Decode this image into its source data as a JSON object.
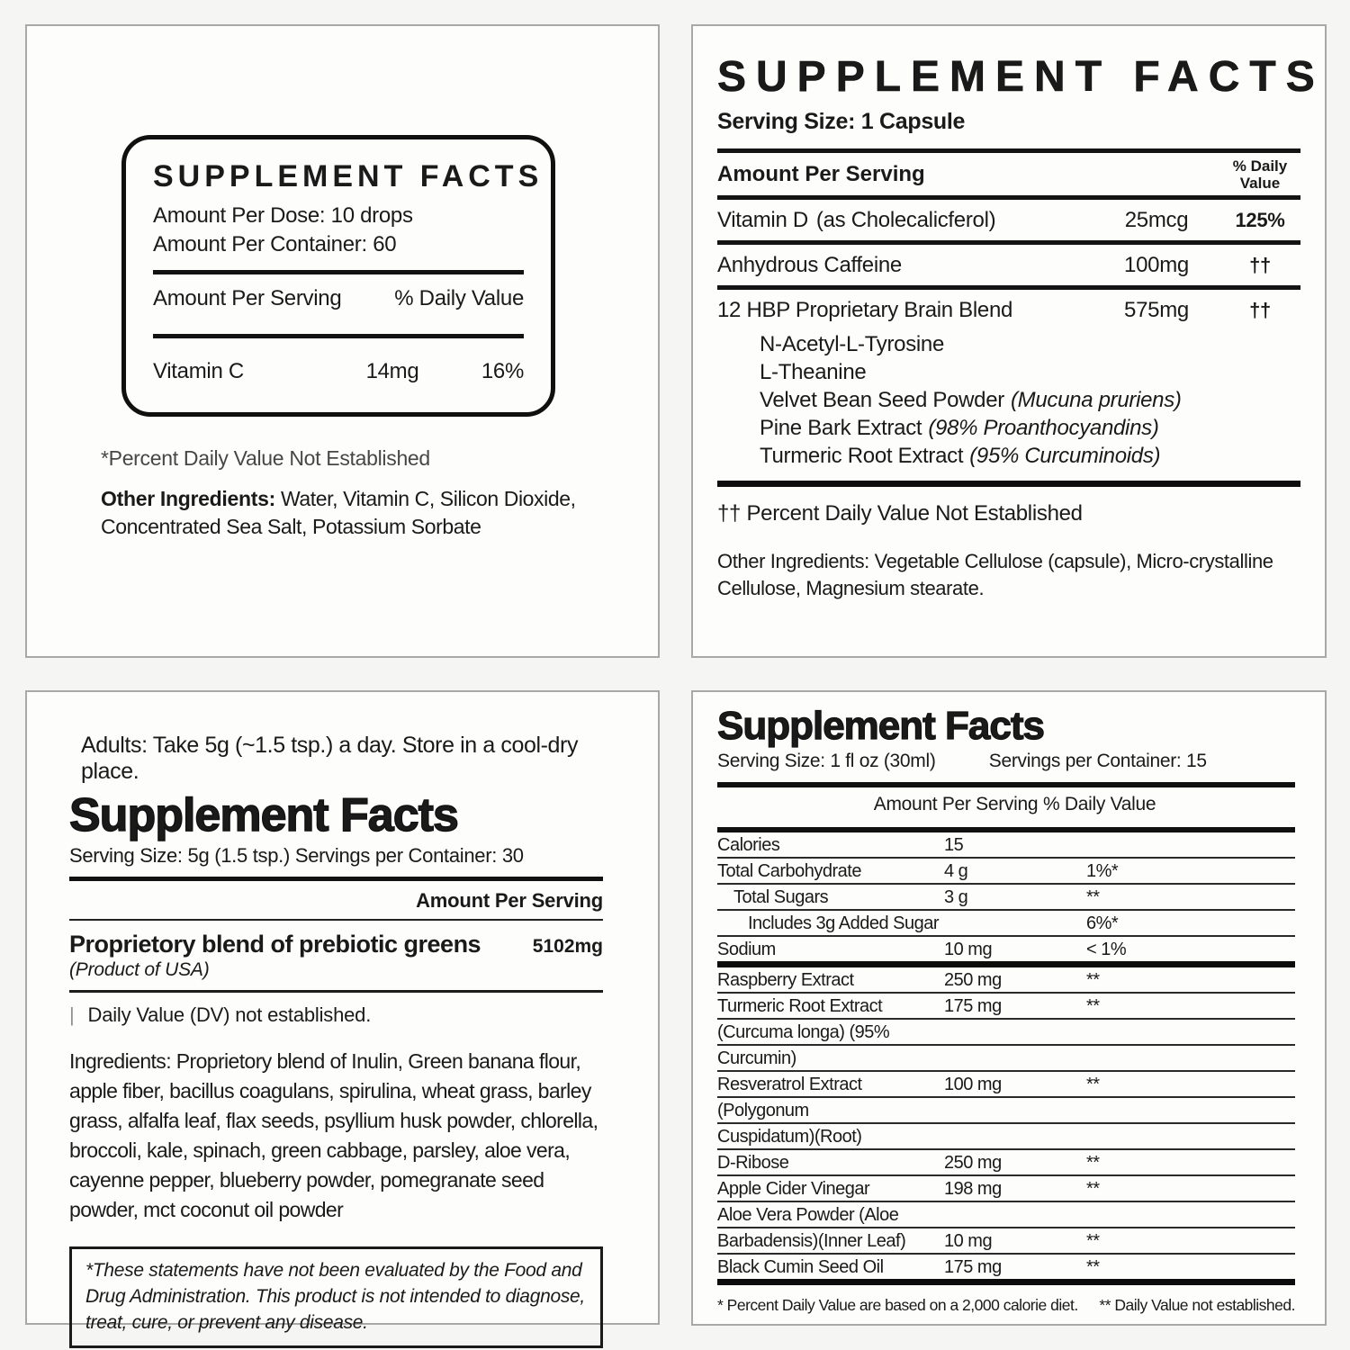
{
  "panel_drops": {
    "title": "SUPPLEMENT FACTS",
    "dose_line": "Amount Per Dose: 10 drops",
    "container_line": "Amount Per Container: 60",
    "amount_header": "Amount Per Serving",
    "dv_header": "% Daily Value",
    "row": {
      "name": "Vitamin C",
      "amount": "14mg",
      "dv": "16%"
    },
    "footnote": "*Percent Daily Value Not Established",
    "other_label": "Other Ingredients:",
    "other_text": " Water, Vitamin C, Silicon Dioxide, Concentrated Sea Salt, Potassium Sorbate"
  },
  "panel_capsule": {
    "title": "SUPPLEMENT FACTS",
    "serving_line": "Serving Size: 1 Capsule",
    "amount_header": "Amount Per Serving",
    "dv_header_l1": "% Daily",
    "dv_header_l2": "Value",
    "rows": [
      {
        "name": "Vitamin D",
        "detail": "(as Cholecalicferol)",
        "amount": "25mcg",
        "dv": "125%"
      },
      {
        "name": "Anhydrous Caffeine",
        "detail": "",
        "amount": "100mg",
        "dv": "††"
      },
      {
        "name": "12 HBP Proprietary Brain Blend",
        "detail": "",
        "amount": "575mg",
        "dv": "††"
      }
    ],
    "blend_items": [
      {
        "name": "N-Acetyl-L-Tyrosine",
        "detail": ""
      },
      {
        "name": "L-Theanine",
        "detail": ""
      },
      {
        "name": "Velvet Bean Seed Powder",
        "detail": "(Mucuna pruriens)"
      },
      {
        "name": "Pine Bark Extract",
        "detail": "(98% Proanthocyandins)"
      },
      {
        "name": "Turmeric Root Extract",
        "detail": "(95% Curcuminoids)"
      }
    ],
    "footnote": "†† Percent Daily Value Not Established",
    "other_text": "Other Ingredients: Vegetable Cellulose (capsule), Micro-crystalline Cellulose, Magnesium stearate."
  },
  "panel_greens": {
    "directions": "Adults: Take 5g (~1.5 tsp.) a day. Store in a cool-dry place.",
    "title": "Supplement Facts",
    "serving_line": "Serving Size: 5g (1.5 tsp.) Servings per Container: 30",
    "amount_header": "Amount Per Serving",
    "blend_name": "Proprietory blend of prebiotic greens",
    "blend_amount": "5102mg",
    "origin": "(Product of USA)",
    "dv_mark": "|",
    "dv_note": "Daily Value (DV) not established.",
    "ingredients": "Ingredients: Proprietory blend of Inulin, Green banana flour, apple fiber, bacillus coagulans, spirulina, wheat grass, barley grass, alfalfa leaf, flax seeds, psyllium husk powder, chlorella, broccoli, kale, spinach, green cabbage, parsley, aloe vera, cayenne pepper, blueberry powder, pomegranate seed powder, mct coconut oil powder",
    "disclaimer": "*These statements have not been evaluated by the Food and Drug Administration. This product is not intended to diagnose, treat, cure, or prevent any disease."
  },
  "panel_liquid": {
    "title": "Supplement Facts",
    "serving_size": "Serving Size: 1 fl oz (30ml)",
    "servings_per": "Servings per Container: 15",
    "amount_header": "Amount Per Serving",
    "dv_header": "% Daily Value",
    "rows": [
      {
        "name": "Calories",
        "amount": "15",
        "dv": "",
        "indent": 0,
        "thick": false
      },
      {
        "name": "Total Carbohydrate",
        "amount": "4 g",
        "dv": "1%*",
        "indent": 0,
        "thick": false
      },
      {
        "name": "Total Sugars",
        "amount": "3 g",
        "dv": "**",
        "indent": 1,
        "thick": false
      },
      {
        "name": "Includes 3g Added Sugar",
        "amount": "",
        "dv": "6%*",
        "indent": 2,
        "thick": false
      },
      {
        "name": "Sodium",
        "amount": "10 mg",
        "dv": "< 1%",
        "indent": 0,
        "thick": true
      },
      {
        "name": "Raspberry Extract",
        "amount": "250 mg",
        "dv": "**",
        "indent": 0,
        "thick": false
      },
      {
        "name": "Turmeric Root Extract",
        "amount": "175 mg",
        "dv": "**",
        "indent": 0,
        "thick": false
      },
      {
        "name": "(Curcuma longa) (95%",
        "amount": "",
        "dv": "",
        "indent": 0,
        "thick": false
      },
      {
        "name": "Curcumin)",
        "amount": "",
        "dv": "",
        "indent": 0,
        "thick": false
      },
      {
        "name": "Resveratrol Extract",
        "amount": "100 mg",
        "dv": "**",
        "indent": 0,
        "thick": false
      },
      {
        "name": "(Polygonum",
        "amount": "",
        "dv": "",
        "indent": 0,
        "thick": false
      },
      {
        "name": "Cuspidatum)(Root)",
        "amount": "",
        "dv": "",
        "indent": 0,
        "thick": false
      },
      {
        "name": "D-Ribose",
        "amount": "250 mg",
        "dv": "**",
        "indent": 0,
        "thick": false
      },
      {
        "name": "Apple Cider Vinegar",
        "amount": "198 mg",
        "dv": "**",
        "indent": 0,
        "thick": false
      },
      {
        "name": "Aloe Vera Powder (Aloe",
        "amount": "",
        "dv": "",
        "indent": 0,
        "thick": false
      },
      {
        "name": "Barbadensis)(Inner Leaf)",
        "amount": "10 mg",
        "dv": "**",
        "indent": 0,
        "thick": false
      },
      {
        "name": "Black Cumin Seed Oil",
        "amount": "175 mg",
        "dv": "**",
        "indent": 0,
        "thick": true
      }
    ],
    "footnote_left": "* Percent Daily Value are based on a 2,000 calorie diet.",
    "footnote_right": "** Daily Value not established."
  }
}
